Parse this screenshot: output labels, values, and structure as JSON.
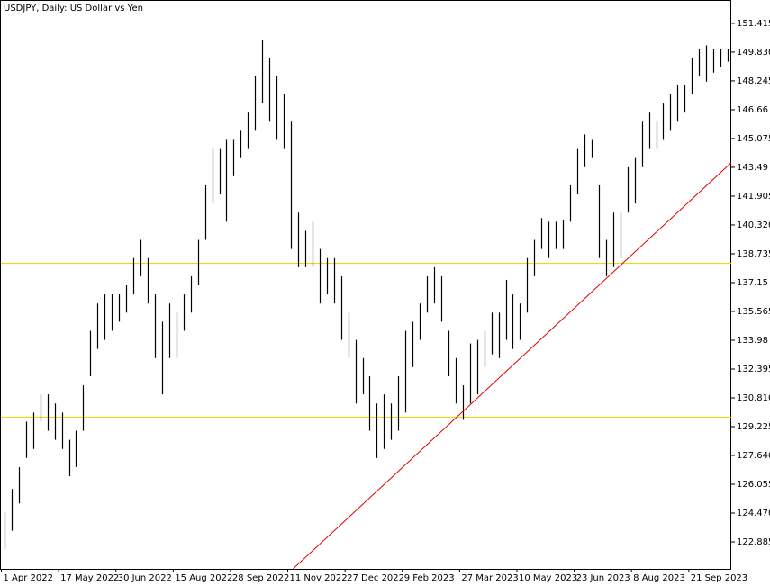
{
  "chart_data": {
    "type": "ohlc",
    "title": "USDJPY, Daily:  US Dollar vs Yen",
    "bar_color": "#000000",
    "high": [
      124.5,
      125.8,
      127,
      129.5,
      130,
      131,
      131,
      130.5,
      130,
      128.5,
      129,
      131.5,
      134.5,
      136,
      136.5,
      136.5,
      136.5,
      137,
      138.5,
      139.5,
      138.5,
      136.5,
      135,
      136,
      135.5,
      136.5,
      137.5,
      139.5,
      142.5,
      144.5,
      144.5,
      145,
      145,
      145.5,
      146.5,
      148.5,
      150.5,
      149.5,
      148.5,
      147.5,
      146,
      141,
      140,
      140.5,
      139,
      138.5,
      138.5,
      137.5,
      135.5,
      134,
      133,
      132,
      130.5,
      131,
      130.5,
      132,
      134.5,
      135,
      136,
      137.5,
      138,
      137.5,
      134.5,
      133,
      131.5,
      133.8,
      134,
      134.5,
      135.5,
      135.5,
      137.3,
      136.5,
      136,
      138.5,
      139.5,
      140.7,
      140.5,
      140.5,
      140.6,
      142.5,
      144.5,
      145.3,
      145,
      142.5,
      139.5,
      141,
      141,
      143.5,
      144,
      146,
      146.5,
      146,
      147,
      147.5,
      148,
      148,
      149.5,
      150,
      150.2,
      150,
      150,
      150
    ],
    "low": [
      122.5,
      123.5,
      125,
      127.5,
      128,
      129.5,
      129,
      128.5,
      128,
      126.5,
      127,
      129,
      132,
      133.5,
      134,
      134.5,
      135,
      135.5,
      136.5,
      137.5,
      136,
      133,
      131,
      133,
      133,
      134.5,
      135.5,
      137,
      139.5,
      141.5,
      142,
      140.5,
      143,
      144,
      144.5,
      145.5,
      147,
      146,
      145,
      144.5,
      139,
      138,
      138,
      138,
      136,
      136.5,
      136,
      134,
      133,
      130.5,
      131,
      129,
      127.5,
      128,
      128.5,
      129,
      130,
      132.5,
      134,
      135.5,
      136,
      135,
      132,
      130.5,
      129.6,
      130.5,
      131,
      132.5,
      133.2,
      133,
      134,
      133.5,
      134,
      135.5,
      137.5,
      139,
      138.5,
      139,
      139,
      140.5,
      142,
      143.5,
      144,
      138.5,
      137.5,
      138,
      138.5,
      141,
      141.5,
      143.5,
      144.5,
      144.5,
      145,
      145.5,
      146,
      146.5,
      147.5,
      148.5,
      148.2,
      148.7,
      149,
      149.3
    ],
    "xlim": [
      0,
      102
    ],
    "ylim": [
      121.4,
      152.65
    ],
    "xticks": [
      {
        "value": 0,
        "label": "1 Apr 2022"
      },
      {
        "value": 8,
        "label": "17 May 2022"
      },
      {
        "value": 16,
        "label": "30 Jun 2022"
      },
      {
        "value": 24,
        "label": "15 Aug 2022"
      },
      {
        "value": 32,
        "label": "28 Sep 2022"
      },
      {
        "value": 40,
        "label": "11 Nov 2022"
      },
      {
        "value": 48,
        "label": "27 Dec 2022"
      },
      {
        "value": 56,
        "label": "9 Feb 2023"
      },
      {
        "value": 64,
        "label": "27 Mar 2023"
      },
      {
        "value": 72,
        "label": "10 May 2023"
      },
      {
        "value": 80,
        "label": "23 Jun 2023"
      },
      {
        "value": 88,
        "label": "8 Aug 2023"
      },
      {
        "value": 96,
        "label": "21 Sep 2023"
      }
    ],
    "yticks": [
      122.885,
      {
        "value": 124.47,
        "label": "124.470"
      },
      126.055,
      {
        "value": 127.64,
        "label": "127.640"
      },
      129.225,
      {
        "value": 130.81,
        "label": "130.810"
      },
      132.395,
      133.98,
      135.565,
      137.15,
      138.735,
      {
        "value": 140.32,
        "label": "140.320"
      },
      141.905,
      143.49,
      145.075,
      146.66,
      148.245,
      {
        "value": 149.83,
        "label": "149.830"
      },
      151.415
    ],
    "levels": [
      {
        "value": 138.21,
        "color": "#e6d200"
      },
      {
        "value": 129.75,
        "color": "#e6d200"
      }
    ],
    "trendline": {
      "x": [
        40.8,
        102
      ],
      "y": [
        121.4,
        143.75
      ],
      "color": "#e00000"
    }
  }
}
